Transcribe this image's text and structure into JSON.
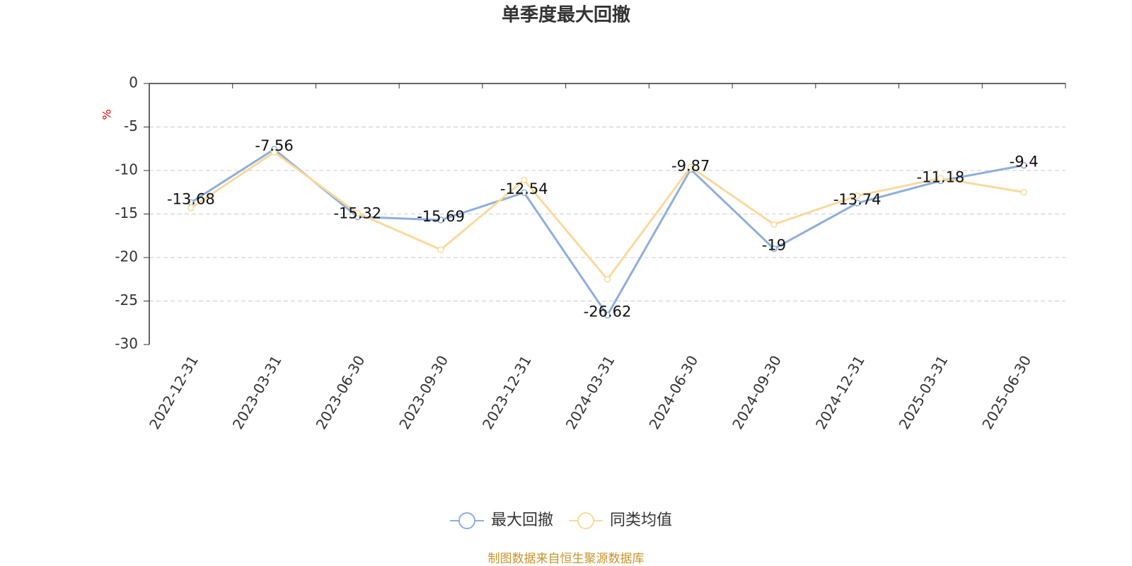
{
  "chart_data": {
    "type": "line",
    "title": "单季度最大回撤",
    "y_label": "%",
    "source": "制图数据来自恒生聚源数据库",
    "categories": [
      "2022-12-31",
      "2023-03-31",
      "2023-06-30",
      "2023-09-30",
      "2023-12-31",
      "2024-03-31",
      "2024-06-30",
      "2024-09-30",
      "2024-12-31",
      "2025-03-31",
      "2025-06-30"
    ],
    "series": [
      {
        "name": "最大回撤",
        "color": "#8eaedb",
        "data_labels": true,
        "values": [
          -13.68,
          -7.56,
          -15.32,
          -15.69,
          -12.54,
          -26.62,
          -9.87,
          -19,
          -13.74,
          -11.18,
          -9.4
        ]
      },
      {
        "name": "同类均值",
        "color": "#fad99b",
        "data_labels": false,
        "values": [
          -14.3,
          -7.9,
          -14.9,
          -19.1,
          -11.1,
          -22.5,
          -9.6,
          -16.2,
          -12.9,
          -10.9,
          -12.5
        ]
      }
    ],
    "ylim": [
      -30,
      0
    ],
    "yticks": [
      0,
      -5,
      -10,
      -15,
      -20,
      -25,
      -30
    ],
    "grid": true,
    "legend": "bottom"
  }
}
